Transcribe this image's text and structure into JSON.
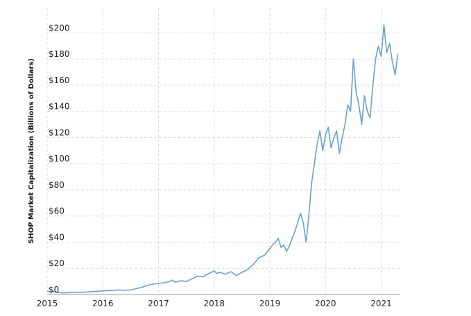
{
  "chart_data": {
    "type": "line",
    "title": "",
    "xlabel": "",
    "ylabel": "SHOP Market Capitalization (Billions of Dollars)",
    "xlim": [
      2015.0,
      2021.33
    ],
    "ylim": [
      0,
      205
    ],
    "x_ticks": [
      2015,
      2016,
      2017,
      2018,
      2019,
      2020,
      2021
    ],
    "x_tick_labels": [
      "2015",
      "2016",
      "2017",
      "2018",
      "2019",
      "2020",
      "2021"
    ],
    "y_ticks": [
      0,
      20,
      40,
      60,
      80,
      100,
      120,
      140,
      160,
      180,
      200
    ],
    "y_tick_labels": [
      "$0",
      "$20",
      "$40",
      "$60",
      "$80",
      "$100",
      "$120",
      "$140",
      "$160",
      "$180",
      "$200"
    ],
    "grid": true,
    "line_color": "#6a9fd0",
    "grid_color": "#dddddd",
    "series": [
      {
        "x": [
          2015.0,
          2015.1,
          2015.2,
          2015.3,
          2015.4,
          2015.5,
          2015.6,
          2015.7,
          2015.8,
          2015.9,
          2016.0,
          2016.1,
          2016.2,
          2016.3,
          2016.4,
          2016.5,
          2016.6,
          2016.7,
          2016.8,
          2016.9,
          2017.0,
          2017.1,
          2017.2,
          2017.25,
          2017.3,
          2017.4,
          2017.5,
          2017.6,
          2017.7,
          2017.8,
          2017.9,
          2018.0,
          2018.05,
          2018.1,
          2018.2,
          2018.3,
          2018.4,
          2018.5,
          2018.6,
          2018.7,
          2018.8,
          2018.9,
          2019.0,
          2019.05,
          2019.1,
          2019.15,
          2019.2,
          2019.25,
          2019.3,
          2019.35,
          2019.4,
          2019.45,
          2019.5,
          2019.55,
          2019.6,
          2019.65,
          2019.7,
          2019.75,
          2019.8,
          2019.85,
          2019.9,
          2019.95,
          2020.0,
          2020.05,
          2020.1,
          2020.15,
          2020.2,
          2020.25,
          2020.3,
          2020.35,
          2020.4,
          2020.45,
          2020.5,
          2020.55,
          2020.6,
          2020.65,
          2020.7,
          2020.75,
          2020.8,
          2020.85,
          2020.9,
          2020.95,
          2021.0,
          2021.05,
          2021.1,
          2021.15,
          2021.2,
          2021.25,
          2021.3
        ],
        "y": [
          2.5,
          2.2,
          1.5,
          1.2,
          1.5,
          1.8,
          1.6,
          1.9,
          2.2,
          2.5,
          2.8,
          3.0,
          3.2,
          3.5,
          3.2,
          3.5,
          4.5,
          5.5,
          7.0,
          8.0,
          8.5,
          9.0,
          10.0,
          11.0,
          9.5,
          10.5,
          10.0,
          12.0,
          14.0,
          13.5,
          16.0,
          18.0,
          16.0,
          17.0,
          15.5,
          17.5,
          14.5,
          17.0,
          19.0,
          23.0,
          28.0,
          30.0,
          35.0,
          38.0,
          40.0,
          43.0,
          36.0,
          38.0,
          33.0,
          37.0,
          43.0,
          48.0,
          55.0,
          62.0,
          55.0,
          40.0,
          60.0,
          85.0,
          100.0,
          115.0,
          125.0,
          110.0,
          122.0,
          128.0,
          112.0,
          120.0,
          125.0,
          108.0,
          120.0,
          130.0,
          145.0,
          140.0,
          180.0,
          155.0,
          145.0,
          130.0,
          152.0,
          140.0,
          135.0,
          160.0,
          180.0,
          190.0,
          182.0,
          206.0,
          185.0,
          192.0,
          178.0,
          168.0,
          184.0
        ]
      }
    ]
  }
}
